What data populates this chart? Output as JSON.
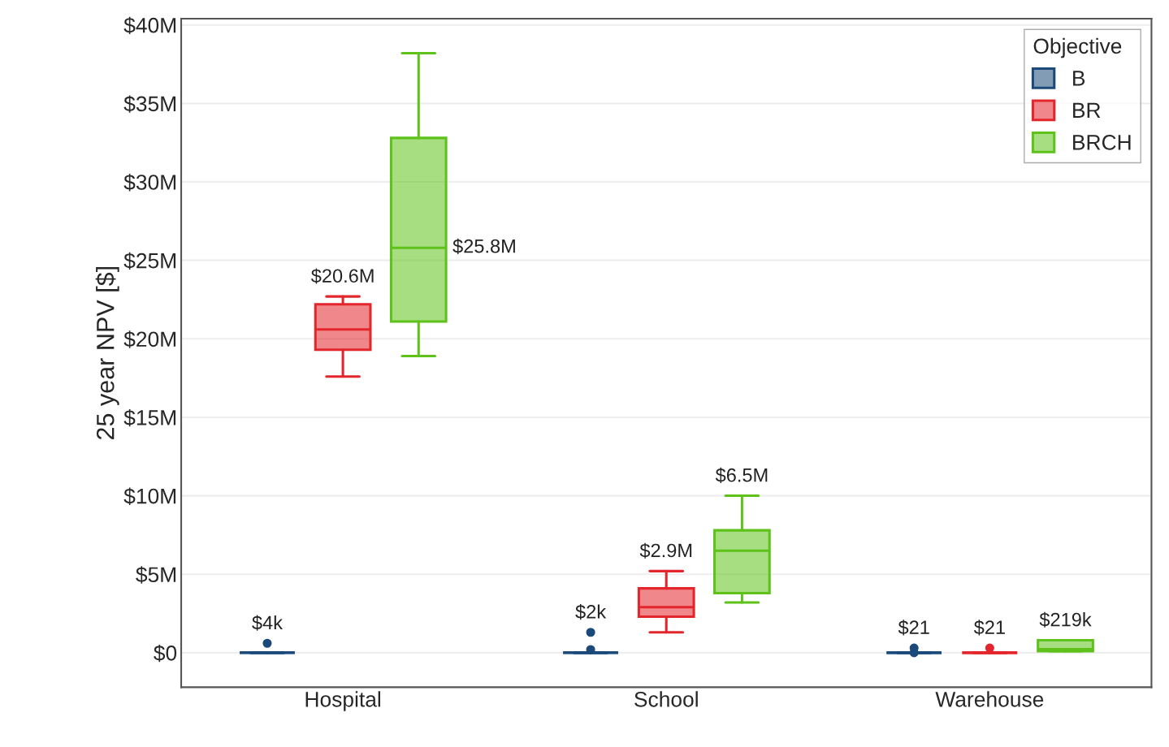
{
  "chart_data": {
    "type": "box",
    "ylabel": "25 year NPV [$]",
    "legend_title": "Objective",
    "categories": [
      "Hospital",
      "School",
      "Warehouse"
    ],
    "ylim": [
      -2.2,
      40.4
    ],
    "yticks": [
      {
        "value": 0,
        "label": "$0"
      },
      {
        "value": 5,
        "label": "$5M"
      },
      {
        "value": 10,
        "label": "$10M"
      },
      {
        "value": 15,
        "label": "$15M"
      },
      {
        "value": 20,
        "label": "$20M"
      },
      {
        "value": 25,
        "label": "$25M"
      },
      {
        "value": 30,
        "label": "$30M"
      },
      {
        "value": 35,
        "label": "$35M"
      },
      {
        "value": 40,
        "label": "$40M"
      }
    ],
    "grid": "y",
    "legend": "top right",
    "series": [
      {
        "name": "B",
        "color": "#1b4a7a",
        "value_labels": [
          "$4k",
          "$2k",
          "$21"
        ],
        "boxes": [
          {
            "low": 0,
            "q1": 0,
            "median": 0.004,
            "q3": 0,
            "high": 0,
            "outliers": [
              0.6
            ]
          },
          {
            "low": 0,
            "q1": 0,
            "median": 0.002,
            "q3": 0,
            "high": 0,
            "outliers": [
              1.3,
              0.2
            ]
          },
          {
            "low": 0,
            "q1": 0,
            "median": 2.1e-05,
            "q3": 0,
            "high": 0,
            "outliers": [
              0.3,
              0.0
            ]
          }
        ]
      },
      {
        "name": "BR",
        "color": "#e3262b",
        "value_labels": [
          "$20.6M",
          "$2.9M",
          "$21"
        ],
        "boxes": [
          {
            "low": 17.6,
            "q1": 19.3,
            "median": 20.6,
            "q3": 22.2,
            "high": 22.7
          },
          {
            "low": 1.3,
            "q1": 2.3,
            "median": 2.9,
            "q3": 4.1,
            "high": 5.2
          },
          {
            "low": 0,
            "q1": 0,
            "median": 2.1e-05,
            "q3": 0,
            "high": 0,
            "outliers": [
              0.3
            ]
          }
        ]
      },
      {
        "name": "BRCH",
        "color": "#5ec21b",
        "value_labels": [
          "$25.8M",
          "$6.5M",
          "$219k"
        ],
        "boxes": [
          {
            "low": 18.9,
            "q1": 21.1,
            "median": 25.8,
            "q3": 32.8,
            "high": 38.2
          },
          {
            "low": 3.2,
            "q1": 3.8,
            "median": 6.5,
            "q3": 7.8,
            "high": 10.0
          },
          {
            "low": 0.1,
            "q1": 0.1,
            "median": 0.219,
            "q3": 0.8,
            "high": 0.8
          }
        ]
      }
    ]
  }
}
